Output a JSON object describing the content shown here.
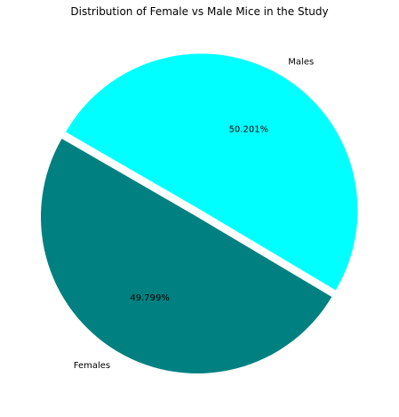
{
  "chart_data": {
    "type": "pie",
    "title": "Distribution of Female vs Male Mice in the Study",
    "slices": [
      {
        "label": "Females",
        "value": 49.799,
        "pct_label": "49.799%",
        "color": "#008080",
        "exploded": false
      },
      {
        "label": "Males",
        "value": 50.201,
        "pct_label": "50.201%",
        "color": "#00ffff",
        "exploded": true
      }
    ],
    "start_angle_deg": 150,
    "legend": "none"
  }
}
